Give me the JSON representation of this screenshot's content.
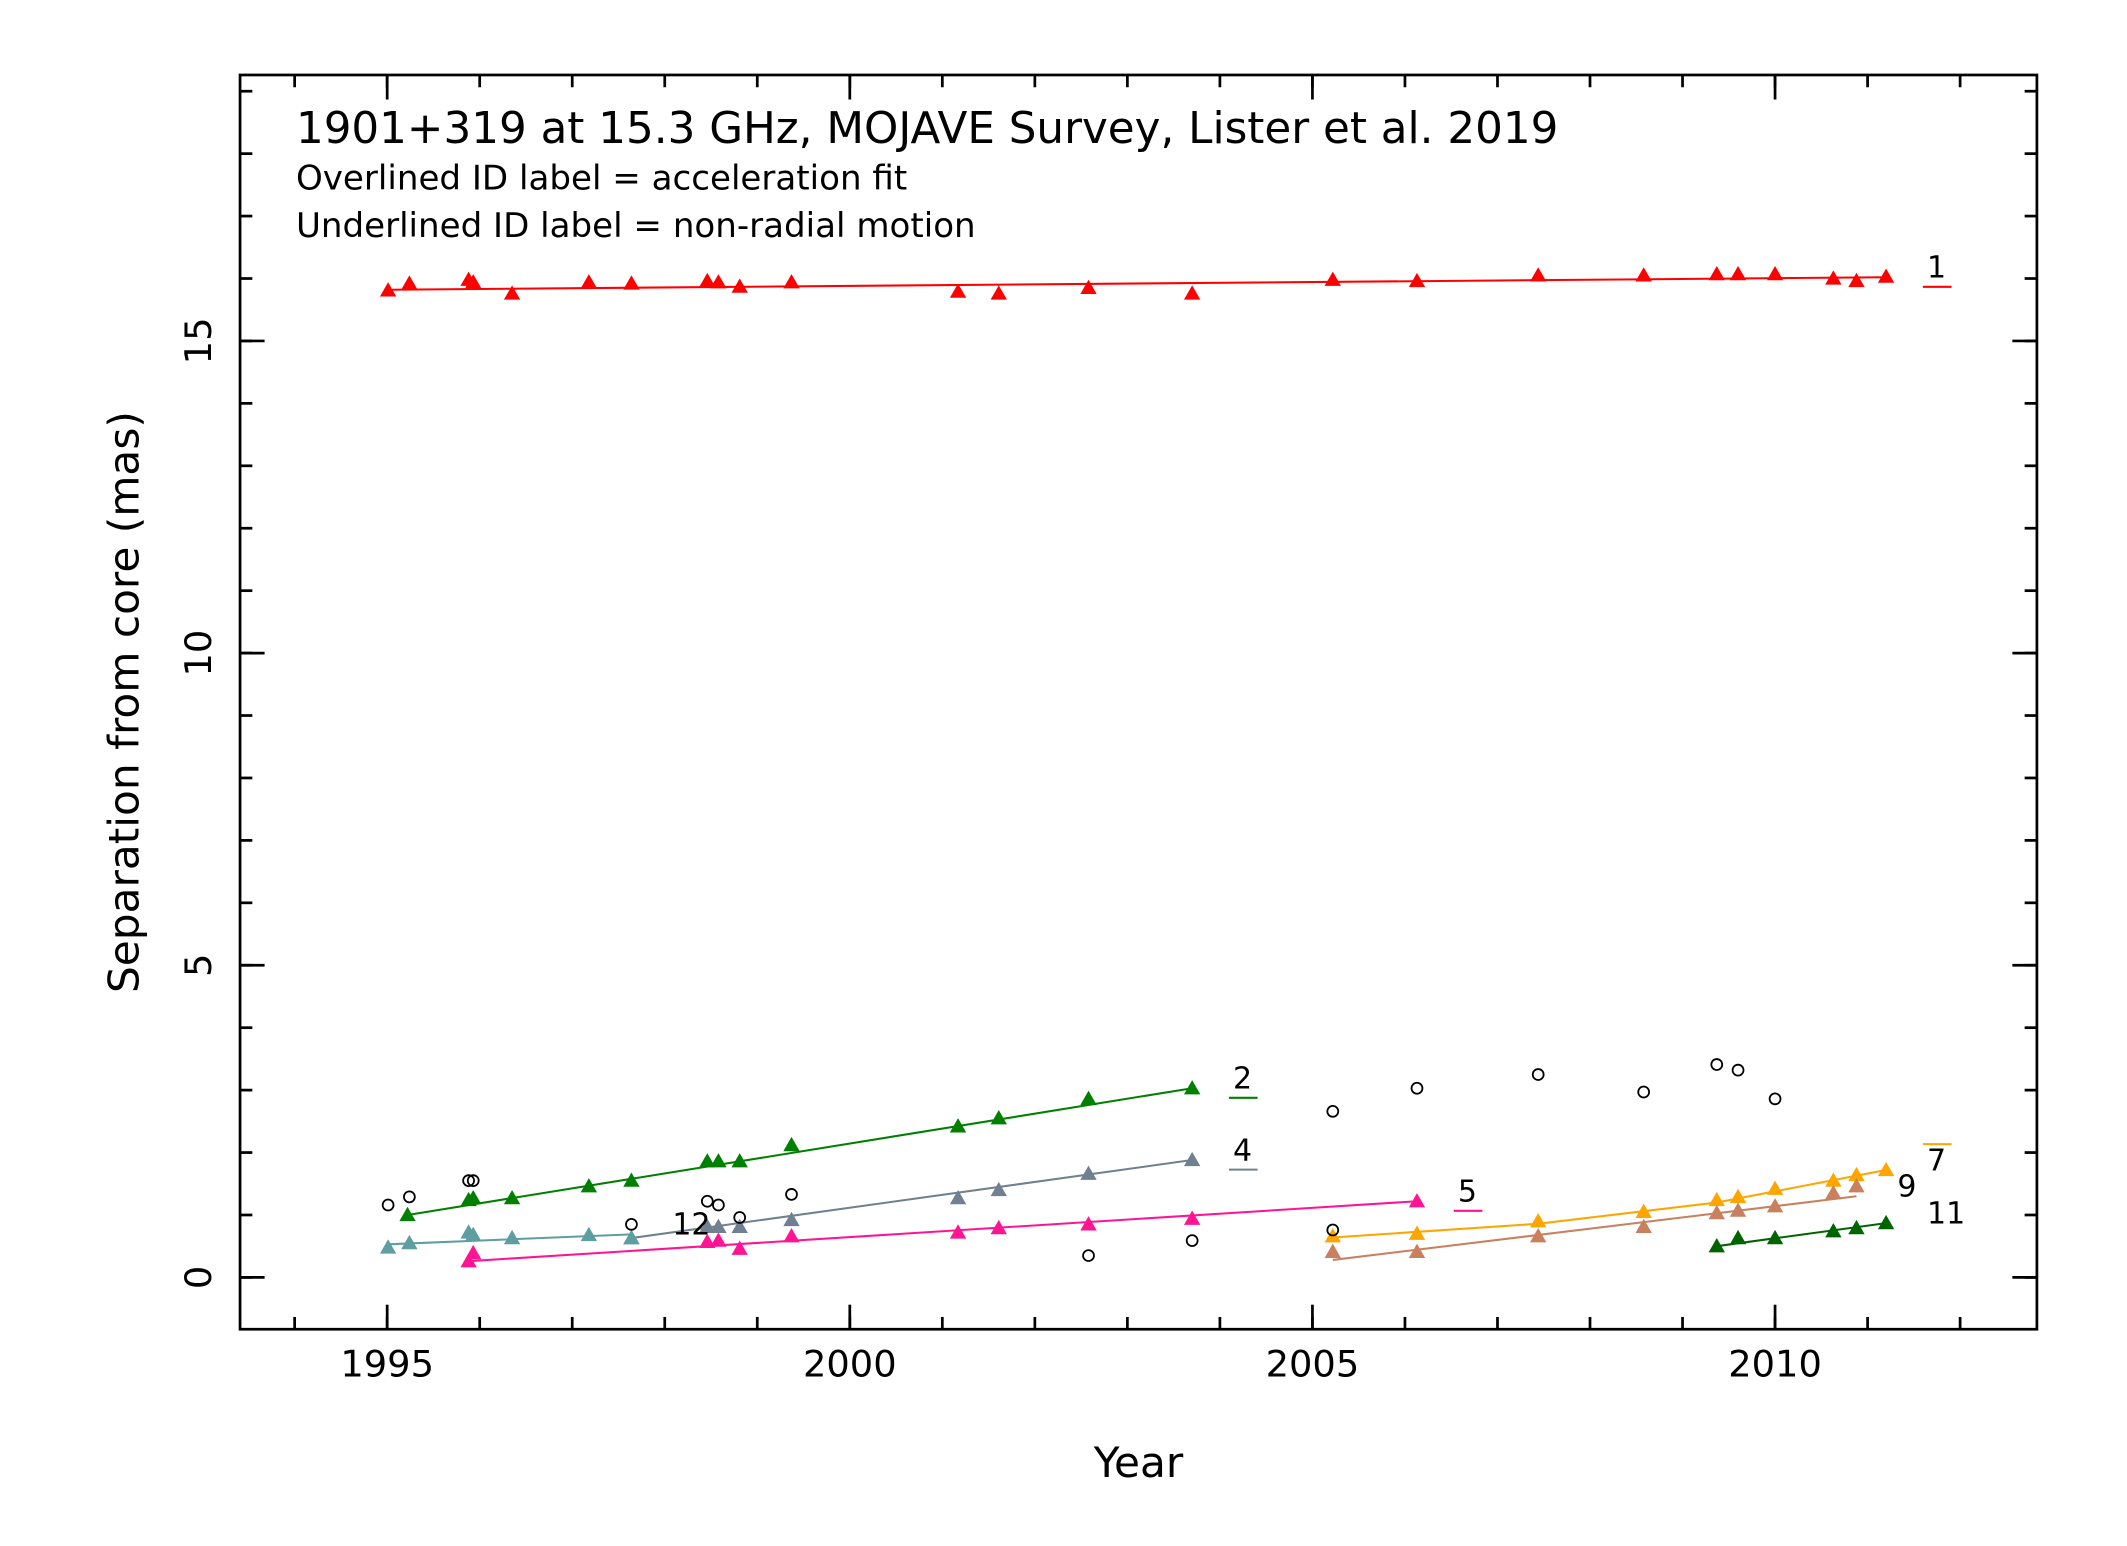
{
  "chart_data": {
    "type": "scatter",
    "title": "1901+319 at 15.3 GHz, MOJAVE Survey, Lister et al. 2019",
    "subtitle": [
      "Overlined ID label = acceleration fit",
      "Underlined ID label = non-radial motion"
    ],
    "x_label": "Year",
    "y_label": "Separation from core (mas)",
    "xlim": [
      1993.41,
      2012.83
    ],
    "ylim": [
      -0.83,
      19.26
    ],
    "xticks": [
      1995,
      2000,
      2005,
      2010
    ],
    "yticks": [
      0,
      5,
      10,
      15
    ],
    "x_minor_step": 1,
    "y_minor_step": 1,
    "series": [
      {
        "name": "1",
        "color": "#ff0000",
        "marker": "triangle",
        "decoration": "underline",
        "x": [
          1995.01,
          1995.24,
          1995.88,
          1995.93,
          1996.35,
          1997.18,
          1997.64,
          1998.46,
          1998.58,
          1998.81,
          1999.37,
          2001.17,
          2001.61,
          2002.58,
          2003.7,
          2005.22,
          2006.13,
          2007.44,
          2008.58,
          2009.37,
          2009.6,
          2010.0,
          2010.63,
          2010.88,
          2011.2
        ],
        "values": [
          15.81,
          15.92,
          15.98,
          15.94,
          15.76,
          15.94,
          15.92,
          15.96,
          15.94,
          15.87,
          15.94,
          15.79,
          15.76,
          15.85,
          15.76,
          15.98,
          15.96,
          16.05,
          16.05,
          16.07,
          16.07,
          16.07,
          16.0,
          15.96,
          16.03
        ],
        "fit": {
          "x": [
            1995.01,
            2011.2
          ],
          "y": [
            15.82,
            16.02
          ]
        }
      },
      {
        "name": "2",
        "color": "#008000",
        "marker": "triangle",
        "decoration": "underline",
        "x": [
          1995.22,
          1995.88,
          1995.93,
          1996.35,
          1997.18,
          1997.64,
          1998.46,
          1998.58,
          1998.81,
          1999.37,
          2001.17,
          2001.61,
          2002.58,
          2003.7
        ],
        "values": [
          1.0,
          1.24,
          1.27,
          1.27,
          1.46,
          1.55,
          1.86,
          1.86,
          1.86,
          2.12,
          2.42,
          2.55,
          2.86,
          3.03
        ],
        "fit": {
          "x": [
            1995.22,
            2003.7
          ],
          "y": [
            1.0,
            3.03
          ]
        }
      },
      {
        "name": "4",
        "color": "#708090",
        "marker": "triangle",
        "decoration": "underline",
        "x": [
          1997.64,
          1998.46,
          1998.58,
          1998.81,
          1999.37,
          2001.17,
          2001.61,
          2002.58,
          2003.7
        ],
        "values": [
          0.63,
          0.81,
          0.81,
          0.81,
          0.92,
          1.27,
          1.4,
          1.66,
          1.88
        ],
        "fit": {
          "x": [
            1997.64,
            2003.7
          ],
          "y": [
            0.63,
            1.88
          ]
        }
      },
      {
        "name": "5",
        "color": "#ff1493",
        "marker": "triangle",
        "decoration": "underline",
        "x": [
          1995.88,
          1995.93,
          1998.46,
          1998.58,
          1998.81,
          1999.37,
          2001.17,
          2001.61,
          2002.58,
          2003.7,
          2006.13
        ],
        "values": [
          0.26,
          0.39,
          0.57,
          0.59,
          0.46,
          0.66,
          0.72,
          0.79,
          0.85,
          0.94,
          1.22
        ],
        "fit": {
          "x": [
            1995.88,
            2006.13
          ],
          "y": [
            0.26,
            1.22
          ]
        }
      },
      {
        "name": "7",
        "color": "#ffa500",
        "marker": "triangle",
        "decoration": "overline",
        "x": [
          2005.22,
          2006.13,
          2007.44,
          2008.58,
          2009.37,
          2009.6,
          2010.0,
          2010.63,
          2010.88,
          2011.2
        ],
        "values": [
          0.66,
          0.7,
          0.9,
          1.05,
          1.24,
          1.29,
          1.42,
          1.55,
          1.64,
          1.72
        ],
        "fit": {
          "x": [
            2005.22,
            2007.44,
            2009.37,
            2011.2
          ],
          "y": [
            0.64,
            0.86,
            1.2,
            1.72
          ]
        }
      },
      {
        "name": "9",
        "color": "#c8805e",
        "marker": "triangle",
        "decoration": "none",
        "x": [
          2005.22,
          2006.13,
          2007.44,
          2008.58,
          2009.37,
          2009.6,
          2010.0,
          2010.63,
          2010.88
        ],
        "values": [
          0.41,
          0.41,
          0.66,
          0.81,
          1.03,
          1.07,
          1.14,
          1.35,
          1.46
        ],
        "fit": {
          "x": [
            2005.22,
            2010.88
          ],
          "y": [
            0.28,
            1.3
          ]
        }
      },
      {
        "name": "11",
        "color": "#006400",
        "marker": "triangle",
        "decoration": "none",
        "x": [
          2009.37,
          2009.6,
          2010.0,
          2010.63,
          2010.88,
          2011.2
        ],
        "values": [
          0.5,
          0.63,
          0.63,
          0.74,
          0.79,
          0.87
        ],
        "fit": {
          "x": [
            2009.37,
            2011.2
          ],
          "y": [
            0.5,
            0.87
          ]
        }
      },
      {
        "name": "12",
        "color": "#5f9ea0",
        "marker": "triangle",
        "decoration": "none",
        "x": [
          1995.01,
          1995.24,
          1995.88,
          1995.93,
          1996.35,
          1997.18,
          1997.64
        ],
        "values": [
          0.48,
          0.55,
          0.72,
          0.68,
          0.63,
          0.68,
          0.63
        ],
        "fit": {
          "x": [
            1995.01,
            1997.64
          ],
          "y": [
            0.53,
            0.69
          ]
        }
      }
    ],
    "unassigned": {
      "color": "#000000",
      "marker": "circle",
      "x": [
        1995.01,
        1995.24,
        1995.88,
        1995.93,
        1997.64,
        1998.46,
        1998.58,
        1998.81,
        1999.37,
        2002.58,
        2003.7,
        2005.22,
        2005.22,
        2006.13,
        2007.44,
        2008.58,
        2009.37,
        2009.6,
        2010.0
      ],
      "values": [
        1.16,
        1.29,
        1.55,
        1.55,
        0.85,
        1.22,
        1.16,
        0.96,
        1.33,
        0.35,
        0.59,
        0.76,
        2.66,
        3.03,
        3.25,
        2.97,
        3.41,
        3.32,
        2.86
      ]
    }
  }
}
